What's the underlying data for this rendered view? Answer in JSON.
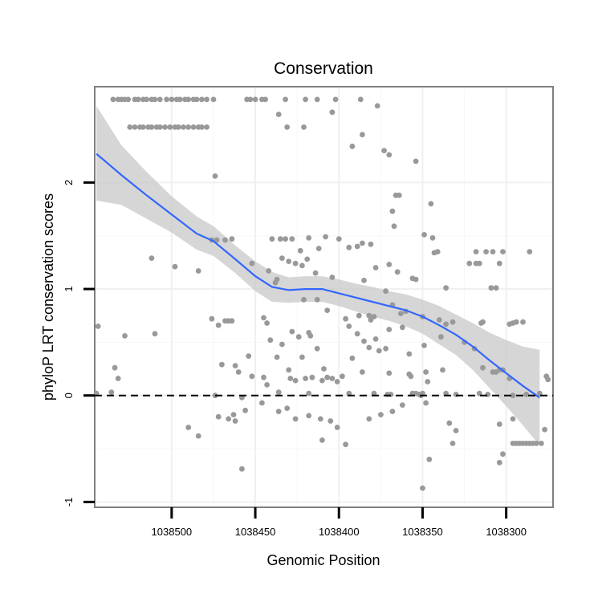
{
  "chart_data": {
    "type": "scatter",
    "title": "Conservation",
    "xlabel": "Genomic Position",
    "ylabel": "phyloP LRT conservation scores",
    "x_reversed": true,
    "xlim": [
      1038546,
      1038272
    ],
    "ylim": [
      -1.05,
      2.9
    ],
    "xticks": [
      1038500,
      1038450,
      1038400,
      1038350,
      1038300
    ],
    "yticks": [
      -1,
      0,
      1,
      2
    ],
    "grid": true,
    "reference_line": {
      "y": 0,
      "style": "dashed",
      "color": "#000000"
    },
    "point_color": "#999999",
    "smooth_color": "#3366ff",
    "ribbon_color": "#c8c8c8",
    "points": [
      [
        1038535,
        2.78
      ],
      [
        1038532,
        2.78
      ],
      [
        1038530,
        2.78
      ],
      [
        1038528,
        2.78
      ],
      [
        1038526,
        2.78
      ],
      [
        1038522,
        2.78
      ],
      [
        1038520,
        2.78
      ],
      [
        1038517,
        2.78
      ],
      [
        1038515,
        2.78
      ],
      [
        1038512,
        2.78
      ],
      [
        1038510,
        2.78
      ],
      [
        1038507,
        2.78
      ],
      [
        1038503,
        2.78
      ],
      [
        1038500,
        2.78
      ],
      [
        1038497,
        2.78
      ],
      [
        1038495,
        2.78
      ],
      [
        1038492,
        2.78
      ],
      [
        1038490,
        2.78
      ],
      [
        1038487,
        2.78
      ],
      [
        1038485,
        2.78
      ],
      [
        1038482,
        2.78
      ],
      [
        1038479,
        2.78
      ],
      [
        1038475,
        2.78
      ],
      [
        1038455,
        2.78
      ],
      [
        1038453,
        2.78
      ],
      [
        1038450,
        2.78
      ],
      [
        1038446,
        2.78
      ],
      [
        1038444,
        2.78
      ],
      [
        1038432,
        2.78
      ],
      [
        1038420,
        2.78
      ],
      [
        1038413,
        2.78
      ],
      [
        1038402,
        2.78
      ],
      [
        1038387,
        2.78
      ],
      [
        1038525,
        2.52
      ],
      [
        1038522,
        2.52
      ],
      [
        1038519,
        2.52
      ],
      [
        1038517,
        2.52
      ],
      [
        1038514,
        2.52
      ],
      [
        1038512,
        2.52
      ],
      [
        1038509,
        2.52
      ],
      [
        1038507,
        2.52
      ],
      [
        1038504,
        2.52
      ],
      [
        1038501,
        2.52
      ],
      [
        1038498,
        2.52
      ],
      [
        1038496,
        2.52
      ],
      [
        1038493,
        2.52
      ],
      [
        1038490,
        2.52
      ],
      [
        1038487,
        2.52
      ],
      [
        1038484,
        2.52
      ],
      [
        1038482,
        2.52
      ],
      [
        1038479,
        2.52
      ],
      [
        1038431,
        2.52
      ],
      [
        1038421,
        2.52
      ],
      [
        1038436,
        2.64
      ],
      [
        1038404,
        2.66
      ],
      [
        1038377,
        2.72
      ],
      [
        1038386,
        2.45
      ],
      [
        1038392,
        2.34
      ],
      [
        1038373,
        2.3
      ],
      [
        1038370,
        2.26
      ],
      [
        1038354,
        2.2
      ],
      [
        1038474,
        2.06
      ],
      [
        1038366,
        1.88
      ],
      [
        1038364,
        1.88
      ],
      [
        1038345,
        1.8
      ],
      [
        1038368,
        1.73
      ],
      [
        1038367,
        1.59
      ],
      [
        1038349,
        1.51
      ],
      [
        1038344,
        1.48
      ],
      [
        1038408,
        1.49
      ],
      [
        1038400,
        1.47
      ],
      [
        1038440,
        1.47
      ],
      [
        1038435,
        1.47
      ],
      [
        1038432,
        1.47
      ],
      [
        1038428,
        1.47
      ],
      [
        1038418,
        1.48
      ],
      [
        1038476,
        1.46
      ],
      [
        1038473,
        1.46
      ],
      [
        1038468,
        1.46
      ],
      [
        1038464,
        1.47
      ],
      [
        1038381,
        1.42
      ],
      [
        1038386,
        1.43
      ],
      [
        1038389,
        1.4
      ],
      [
        1038394,
        1.39
      ],
      [
        1038412,
        1.38
      ],
      [
        1038423,
        1.36
      ],
      [
        1038318,
        1.35
      ],
      [
        1038312,
        1.35
      ],
      [
        1038308,
        1.35
      ],
      [
        1038302,
        1.35
      ],
      [
        1038286,
        1.35
      ],
      [
        1038341,
        1.35
      ],
      [
        1038343,
        1.34
      ],
      [
        1038512,
        1.29
      ],
      [
        1038434,
        1.29
      ],
      [
        1038419,
        1.28
      ],
      [
        1038430,
        1.26
      ],
      [
        1038452,
        1.24
      ],
      [
        1038426,
        1.24
      ],
      [
        1038322,
        1.24
      ],
      [
        1038318,
        1.24
      ],
      [
        1038316,
        1.24
      ],
      [
        1038304,
        1.24
      ],
      [
        1038370,
        1.23
      ],
      [
        1038422,
        1.22
      ],
      [
        1038378,
        1.2
      ],
      [
        1038498,
        1.21
      ],
      [
        1038484,
        1.17
      ],
      [
        1038442,
        1.17
      ],
      [
        1038414,
        1.15
      ],
      [
        1038365,
        1.16
      ],
      [
        1038356,
        1.1
      ],
      [
        1038354,
        1.09
      ],
      [
        1038437,
        1.09
      ],
      [
        1038404,
        1.11
      ],
      [
        1038385,
        1.08
      ],
      [
        1038438,
        1.06
      ],
      [
        1038309,
        1.01
      ],
      [
        1038306,
        1.01
      ],
      [
        1038336,
        1.01
      ],
      [
        1038372,
        0.98
      ],
      [
        1038421,
        0.9
      ],
      [
        1038413,
        0.9
      ],
      [
        1038368,
        0.85
      ],
      [
        1038360,
        0.79
      ],
      [
        1038407,
        0.8
      ],
      [
        1038363,
        0.77
      ],
      [
        1038379,
        0.74
      ],
      [
        1038350,
        0.74
      ],
      [
        1038340,
        0.71
      ],
      [
        1038388,
        0.75
      ],
      [
        1038382,
        0.75
      ],
      [
        1038544,
        0.65
      ],
      [
        1038510,
        0.58
      ],
      [
        1038476,
        0.72
      ],
      [
        1038472,
        0.66
      ],
      [
        1038468,
        0.7
      ],
      [
        1038466,
        0.7
      ],
      [
        1038464,
        0.7
      ],
      [
        1038445,
        0.73
      ],
      [
        1038443,
        0.68
      ],
      [
        1038428,
        0.6
      ],
      [
        1038424,
        0.55
      ],
      [
        1038418,
        0.59
      ],
      [
        1038394,
        0.65
      ],
      [
        1038389,
        0.58
      ],
      [
        1038370,
        0.62
      ],
      [
        1038362,
        0.64
      ],
      [
        1038336,
        0.67
      ],
      [
        1038332,
        0.69
      ],
      [
        1038315,
        0.68
      ],
      [
        1038314,
        0.69
      ],
      [
        1038298,
        0.67
      ],
      [
        1038296,
        0.68
      ],
      [
        1038294,
        0.69
      ],
      [
        1038290,
        0.69
      ],
      [
        1038396,
        0.72
      ],
      [
        1038381,
        0.71
      ],
      [
        1038528,
        0.56
      ],
      [
        1038441,
        0.52
      ],
      [
        1038434,
        0.48
      ],
      [
        1038417,
        0.56
      ],
      [
        1038413,
        0.44
      ],
      [
        1038385,
        0.51
      ],
      [
        1038382,
        0.45
      ],
      [
        1038378,
        0.53
      ],
      [
        1038376,
        0.42
      ],
      [
        1038372,
        0.44
      ],
      [
        1038358,
        0.39
      ],
      [
        1038349,
        0.47
      ],
      [
        1038339,
        0.55
      ],
      [
        1038325,
        0.5
      ],
      [
        1038319,
        0.44
      ],
      [
        1038392,
        0.35
      ],
      [
        1038470,
        0.29
      ],
      [
        1038462,
        0.28
      ],
      [
        1038454,
        0.37
      ],
      [
        1038437,
        0.36
      ],
      [
        1038430,
        0.24
      ],
      [
        1038422,
        0.36
      ],
      [
        1038409,
        0.25
      ],
      [
        1038386,
        0.22
      ],
      [
        1038358,
        0.2
      ],
      [
        1038348,
        0.22
      ],
      [
        1038338,
        0.24
      ],
      [
        1038314,
        0.26
      ],
      [
        1038306,
        0.22
      ],
      [
        1038304,
        0.24
      ],
      [
        1038302,
        0.24
      ],
      [
        1038534,
        0.26
      ],
      [
        1038532,
        0.16
      ],
      [
        1038460,
        0.22
      ],
      [
        1038452,
        0.18
      ],
      [
        1038445,
        0.17
      ],
      [
        1038443,
        0.1
      ],
      [
        1038429,
        0.16
      ],
      [
        1038426,
        0.14
      ],
      [
        1038420,
        0.16
      ],
      [
        1038416,
        0.17
      ],
      [
        1038410,
        0.14
      ],
      [
        1038407,
        0.17
      ],
      [
        1038404,
        0.16
      ],
      [
        1038401,
        0.13
      ],
      [
        1038398,
        0.18
      ],
      [
        1038370,
        0.21
      ],
      [
        1038357,
        0.18
      ],
      [
        1038347,
        0.13
      ],
      [
        1038308,
        0.22
      ],
      [
        1038298,
        0.16
      ],
      [
        1038276,
        0.18
      ],
      [
        1038275,
        0.15
      ],
      [
        1038545,
        0.02
      ],
      [
        1038536,
        0.03
      ],
      [
        1038458,
        -0.02
      ],
      [
        1038436,
        0.03
      ],
      [
        1038418,
        0.02
      ],
      [
        1038394,
        0.02
      ],
      [
        1038379,
        0.02
      ],
      [
        1038371,
        0.01
      ],
      [
        1038369,
        0.01
      ],
      [
        1038356,
        0.02
      ],
      [
        1038354,
        0.02
      ],
      [
        1038352,
        0.01
      ],
      [
        1038351,
        0.0
      ],
      [
        1038350,
        0.02
      ],
      [
        1038336,
        0.02
      ],
      [
        1038330,
        0.01
      ],
      [
        1038316,
        0.02
      ],
      [
        1038311,
        0.01
      ],
      [
        1038296,
        0.0
      ],
      [
        1038288,
        0.01
      ],
      [
        1038280,
        0.02
      ],
      [
        1038474,
        0.0
      ],
      [
        1038472,
        -0.2
      ],
      [
        1038466,
        -0.22
      ],
      [
        1038463,
        -0.18
      ],
      [
        1038462,
        -0.24
      ],
      [
        1038456,
        -0.14
      ],
      [
        1038446,
        -0.07
      ],
      [
        1038436,
        -0.15
      ],
      [
        1038431,
        -0.12
      ],
      [
        1038426,
        -0.22
      ],
      [
        1038418,
        -0.19
      ],
      [
        1038411,
        -0.22
      ],
      [
        1038405,
        -0.24
      ],
      [
        1038401,
        -0.3
      ],
      [
        1038382,
        -0.22
      ],
      [
        1038375,
        -0.18
      ],
      [
        1038368,
        -0.15
      ],
      [
        1038362,
        -0.09
      ],
      [
        1038348,
        -0.07
      ],
      [
        1038334,
        -0.26
      ],
      [
        1038330,
        -0.33
      ],
      [
        1038304,
        -0.27
      ],
      [
        1038296,
        -0.22
      ],
      [
        1038490,
        -0.3
      ],
      [
        1038484,
        -0.38
      ],
      [
        1038410,
        -0.42
      ],
      [
        1038396,
        -0.46
      ],
      [
        1038332,
        -0.45
      ],
      [
        1038296,
        -0.45
      ],
      [
        1038294,
        -0.45
      ],
      [
        1038292,
        -0.45
      ],
      [
        1038290,
        -0.45
      ],
      [
        1038288,
        -0.45
      ],
      [
        1038286,
        -0.45
      ],
      [
        1038284,
        -0.45
      ],
      [
        1038282,
        -0.45
      ],
      [
        1038279,
        -0.45
      ],
      [
        1038277,
        -0.32
      ],
      [
        1038302,
        -0.55
      ],
      [
        1038304,
        -0.63
      ],
      [
        1038346,
        -0.6
      ],
      [
        1038458,
        -0.69
      ],
      [
        1038350,
        -0.87
      ]
    ],
    "smooth": [
      [
        1038545,
        2.27
      ],
      [
        1038530,
        2.07
      ],
      [
        1038515,
        1.88
      ],
      [
        1038500,
        1.7
      ],
      [
        1038485,
        1.52
      ],
      [
        1038475,
        1.45
      ],
      [
        1038462,
        1.28
      ],
      [
        1038450,
        1.12
      ],
      [
        1038440,
        1.02
      ],
      [
        1038430,
        0.99
      ],
      [
        1038420,
        1.0
      ],
      [
        1038410,
        1.0
      ],
      [
        1038400,
        0.96
      ],
      [
        1038390,
        0.92
      ],
      [
        1038380,
        0.88
      ],
      [
        1038370,
        0.84
      ],
      [
        1038360,
        0.8
      ],
      [
        1038350,
        0.74
      ],
      [
        1038340,
        0.66
      ],
      [
        1038330,
        0.57
      ],
      [
        1038320,
        0.46
      ],
      [
        1038310,
        0.33
      ],
      [
        1038300,
        0.21
      ],
      [
        1038290,
        0.09
      ],
      [
        1038280,
        -0.02
      ]
    ],
    "ribbon_upper": [
      [
        1038545,
        2.72
      ],
      [
        1038530,
        2.35
      ],
      [
        1038515,
        2.1
      ],
      [
        1038500,
        1.87
      ],
      [
        1038485,
        1.68
      ],
      [
        1038475,
        1.59
      ],
      [
        1038462,
        1.41
      ],
      [
        1038450,
        1.26
      ],
      [
        1038440,
        1.16
      ],
      [
        1038430,
        1.11
      ],
      [
        1038420,
        1.12
      ],
      [
        1038410,
        1.12
      ],
      [
        1038400,
        1.09
      ],
      [
        1038390,
        1.05
      ],
      [
        1038380,
        1.02
      ],
      [
        1038370,
        0.98
      ],
      [
        1038360,
        0.95
      ],
      [
        1038350,
        0.9
      ],
      [
        1038340,
        0.84
      ],
      [
        1038330,
        0.76
      ],
      [
        1038320,
        0.68
      ],
      [
        1038310,
        0.59
      ],
      [
        1038300,
        0.52
      ],
      [
        1038290,
        0.46
      ],
      [
        1038280,
        0.43
      ]
    ],
    "ribbon_lower": [
      [
        1038545,
        1.83
      ],
      [
        1038530,
        1.79
      ],
      [
        1038515,
        1.66
      ],
      [
        1038500,
        1.53
      ],
      [
        1038485,
        1.37
      ],
      [
        1038475,
        1.31
      ],
      [
        1038462,
        1.15
      ],
      [
        1038450,
        0.98
      ],
      [
        1038440,
        0.88
      ],
      [
        1038430,
        0.87
      ],
      [
        1038420,
        0.88
      ],
      [
        1038410,
        0.88
      ],
      [
        1038400,
        0.84
      ],
      [
        1038390,
        0.79
      ],
      [
        1038380,
        0.74
      ],
      [
        1038370,
        0.7
      ],
      [
        1038360,
        0.65
      ],
      [
        1038350,
        0.58
      ],
      [
        1038340,
        0.48
      ],
      [
        1038330,
        0.38
      ],
      [
        1038320,
        0.24
      ],
      [
        1038310,
        0.07
      ],
      [
        1038300,
        -0.1
      ],
      [
        1038290,
        -0.28
      ],
      [
        1038280,
        -0.47
      ]
    ]
  }
}
